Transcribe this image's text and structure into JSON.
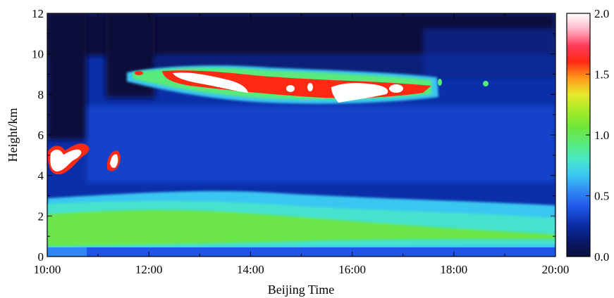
{
  "chart_data": {
    "type": "heatmap",
    "title": "",
    "xlabel": "Beijing Time",
    "ylabel": "Height/km",
    "x_tick_labels": [
      "10:00",
      "12:00",
      "14:00",
      "16:00",
      "18:00",
      "20:00"
    ],
    "x_ticks_hours": [
      10,
      12,
      14,
      16,
      18,
      20
    ],
    "xlim_hours": [
      10,
      20
    ],
    "y_tick_labels": [
      "0",
      "2",
      "4",
      "6",
      "8",
      "10",
      "12"
    ],
    "y_ticks": [
      0,
      2,
      4,
      6,
      8,
      10,
      12
    ],
    "ylim_km": [
      0,
      12
    ],
    "colorbar": {
      "range": [
        0.0,
        2.0
      ],
      "tick_labels": [
        "0.0",
        "0.5",
        "1.0",
        "1.5",
        "2.0"
      ],
      "ticks": [
        0.0,
        0.5,
        1.0,
        1.5,
        2.0
      ],
      "colors": [
        "#0a0f3a",
        "#0a1a6e",
        "#0b2fa8",
        "#1e55e6",
        "#2f86f5",
        "#3ac6f2",
        "#48e8c8",
        "#58ea7a",
        "#6fe63a",
        "#a7ea28",
        "#e8e82a",
        "#ff9a1a",
        "#ff2a14",
        "#ff3a5a",
        "#ffb3c6",
        "#ffffff"
      ]
    },
    "features": [
      {
        "name": "boundary layer aerosol",
        "x_range_hours": [
          10.0,
          20.0
        ],
        "height_km": [
          0.5,
          2.6
        ],
        "approx_value": 0.95
      },
      {
        "name": "aerosol upper layer",
        "x_range_hours": [
          10.0,
          20.0
        ],
        "height_km": [
          2.6,
          3.6
        ],
        "approx_value": 0.45
      },
      {
        "name": "cirrus cloud",
        "x_range_hours": [
          11.8,
          17.7
        ],
        "height_km": [
          7.6,
          9.2
        ],
        "approx_value": 2.0
      },
      {
        "name": "low cloud",
        "x_range_hours": [
          10.0,
          10.8
        ],
        "height_km": [
          4.0,
          5.8
        ],
        "approx_value": 2.0
      },
      {
        "name": "low cloud",
        "x_range_hours": [
          11.2,
          11.4
        ],
        "height_km": [
          4.3,
          5.1
        ],
        "approx_value": 2.0
      }
    ]
  }
}
